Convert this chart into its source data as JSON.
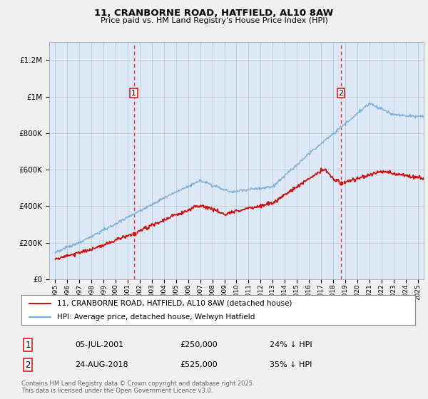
{
  "title1": "11, CRANBORNE ROAD, HATFIELD, AL10 8AW",
  "title2": "Price paid vs. HM Land Registry's House Price Index (HPI)",
  "background_color": "#f0f0f0",
  "plot_bg_color": "#dce8f5",
  "hpi_color": "#7aadd8",
  "price_color": "#cc1111",
  "dashed_line_color": "#cc2222",
  "ylim": [
    0,
    1300000
  ],
  "yticks": [
    0,
    200000,
    400000,
    600000,
    800000,
    1000000,
    1200000
  ],
  "ytick_labels": [
    "£0",
    "£200K",
    "£400K",
    "£600K",
    "£800K",
    "£1M",
    "£1.2M"
  ],
  "sale1_date": "05-JUL-2001",
  "sale1_price": 250000,
  "sale1_label": "24% ↓ HPI",
  "sale1_x": 2001.5,
  "sale2_date": "24-AUG-2018",
  "sale2_price": 525000,
  "sale2_label": "35% ↓ HPI",
  "sale2_x": 2018.65,
  "legend_label1": "11, CRANBORNE ROAD, HATFIELD, AL10 8AW (detached house)",
  "legend_label2": "HPI: Average price, detached house, Welwyn Hatfield",
  "annotation1_box": "1",
  "annotation2_box": "2",
  "footer": "Contains HM Land Registry data © Crown copyright and database right 2025.\nThis data is licensed under the Open Government Licence v3.0.",
  "xlim_start": 1994.5,
  "xlim_end": 2025.5
}
